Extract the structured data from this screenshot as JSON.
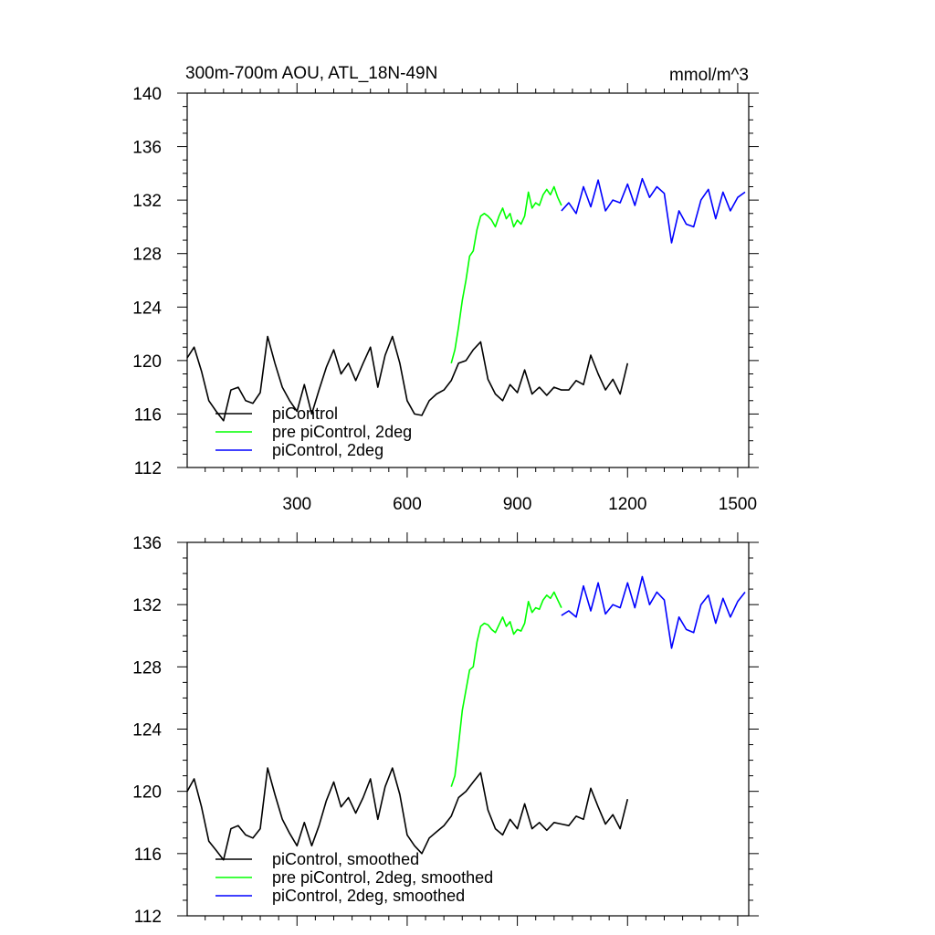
{
  "chart_data": [
    {
      "type": "line",
      "title": "300m-700m AOU, ATL_18N-49N",
      "units": "mmol/m^3",
      "xlim": [
        1,
        1530
      ],
      "ylim": [
        112,
        140
      ],
      "x_ticks": [
        300,
        600,
        900,
        1200,
        1500
      ],
      "x_tick_labels": [
        "300",
        "600",
        "900",
        "1200",
        "1500"
      ],
      "y_ticks": [
        112,
        116,
        120,
        124,
        128,
        132,
        136,
        140
      ],
      "y_tick_labels": [
        "112",
        "116",
        "120",
        "124",
        "128",
        "132",
        "136",
        "140"
      ],
      "legend_position": "bottom-left",
      "series": [
        {
          "name": "piControl",
          "color": "#000000",
          "x": [
            1,
            20,
            40,
            60,
            80,
            100,
            120,
            140,
            160,
            180,
            200,
            220,
            240,
            260,
            280,
            300,
            320,
            340,
            360,
            380,
            400,
            420,
            440,
            460,
            480,
            500,
            520,
            540,
            560,
            580,
            600,
            620,
            640,
            660,
            680,
            700,
            720,
            740,
            760,
            780,
            800,
            820,
            840,
            860,
            880,
            900,
            920,
            940,
            960,
            980,
            1000,
            1020,
            1040,
            1060,
            1080,
            1100,
            1120,
            1140,
            1160,
            1180,
            1200
          ],
          "y": [
            120.2,
            121.0,
            119.2,
            117.0,
            116.2,
            115.5,
            117.8,
            118.0,
            117.0,
            116.8,
            117.6,
            121.8,
            119.8,
            118.0,
            117.0,
            116.2,
            118.2,
            116.0,
            117.8,
            119.5,
            120.8,
            119.0,
            119.8,
            118.5,
            119.8,
            121.0,
            118.0,
            120.4,
            121.8,
            119.8,
            117.0,
            116.0,
            115.9,
            117.0,
            117.5,
            117.8,
            118.5,
            119.8,
            120.0,
            120.8,
            121.4,
            118.6,
            117.5,
            117.0,
            118.2,
            117.6,
            119.3,
            117.5,
            118.0,
            117.4,
            118.0,
            117.8,
            117.8,
            118.5,
            118.2,
            120.4,
            119.0,
            117.8,
            118.6,
            117.5,
            119.8
          ]
        },
        {
          "name": "pre piControl, 2deg",
          "color": "#00ff00",
          "x": [
            720,
            730,
            740,
            750,
            760,
            770,
            780,
            790,
            800,
            810,
            820,
            830,
            840,
            850,
            860,
            870,
            880,
            890,
            900,
            910,
            920,
            930,
            940,
            950,
            960,
            970,
            980,
            990,
            1000,
            1010,
            1020
          ],
          "y": [
            119.8,
            120.8,
            122.5,
            124.5,
            126.0,
            127.8,
            128.2,
            129.8,
            130.8,
            131.0,
            130.8,
            130.5,
            130.0,
            130.8,
            131.4,
            130.6,
            131.0,
            130.0,
            130.5,
            130.2,
            130.8,
            132.6,
            131.4,
            131.8,
            131.6,
            132.4,
            132.8,
            132.4,
            133.0,
            132.2,
            131.6
          ]
        },
        {
          "name": "piControl, 2deg",
          "color": "#0000ff",
          "x": [
            1020,
            1040,
            1060,
            1080,
            1100,
            1120,
            1140,
            1160,
            1180,
            1200,
            1220,
            1240,
            1260,
            1280,
            1300,
            1320,
            1340,
            1360,
            1380,
            1400,
            1420,
            1440,
            1460,
            1480,
            1500,
            1520
          ],
          "y": [
            131.2,
            131.8,
            131.0,
            133.0,
            131.5,
            133.5,
            131.2,
            132.0,
            131.8,
            133.2,
            131.6,
            133.6,
            132.2,
            133.0,
            132.5,
            128.8,
            131.2,
            130.2,
            130.0,
            132.0,
            132.8,
            130.6,
            132.6,
            131.2,
            132.2,
            132.6
          ]
        }
      ]
    },
    {
      "type": "line",
      "title": "",
      "xlim": [
        1,
        1530
      ],
      "ylim": [
        112,
        136
      ],
      "y_ticks": [
        112,
        116,
        120,
        124,
        128,
        132,
        136
      ],
      "y_tick_labels": [
        "112",
        "116",
        "120",
        "124",
        "128",
        "132",
        "136"
      ],
      "legend_position": "bottom-left",
      "series": [
        {
          "name": "piControl, smoothed",
          "color": "#000000",
          "x": [
            1,
            20,
            40,
            60,
            80,
            100,
            120,
            140,
            160,
            180,
            200,
            220,
            240,
            260,
            280,
            300,
            320,
            340,
            360,
            380,
            400,
            420,
            440,
            460,
            480,
            500,
            520,
            540,
            560,
            580,
            600,
            620,
            640,
            660,
            680,
            700,
            720,
            740,
            760,
            780,
            800,
            820,
            840,
            860,
            880,
            900,
            920,
            940,
            960,
            980,
            1000,
            1020,
            1040,
            1060,
            1080,
            1100,
            1120,
            1140,
            1160,
            1180,
            1200
          ],
          "y": [
            120.0,
            120.8,
            119.0,
            116.8,
            116.2,
            115.6,
            117.6,
            117.8,
            117.2,
            117.0,
            117.6,
            121.5,
            119.8,
            118.2,
            117.3,
            116.5,
            118.0,
            116.5,
            117.8,
            119.4,
            120.6,
            119.0,
            119.6,
            118.6,
            119.6,
            120.8,
            118.2,
            120.3,
            121.5,
            119.8,
            117.2,
            116.5,
            116.0,
            117.0,
            117.4,
            117.8,
            118.4,
            119.6,
            120.0,
            120.6,
            121.2,
            118.8,
            117.6,
            117.2,
            118.2,
            117.6,
            119.2,
            117.6,
            118.0,
            117.5,
            118.0,
            117.9,
            117.8,
            118.4,
            118.2,
            120.2,
            119.0,
            117.9,
            118.5,
            117.6,
            119.5
          ]
        },
        {
          "name": "pre piControl, 2deg, smoothed",
          "color": "#00ff00",
          "x": [
            720,
            730,
            740,
            750,
            760,
            770,
            780,
            790,
            800,
            810,
            820,
            830,
            840,
            850,
            860,
            870,
            880,
            890,
            900,
            910,
            920,
            930,
            940,
            950,
            960,
            970,
            980,
            990,
            1000,
            1010,
            1020
          ],
          "y": [
            120.3,
            121.0,
            123.0,
            125.2,
            126.5,
            127.8,
            128.0,
            129.6,
            130.6,
            130.8,
            130.7,
            130.4,
            130.2,
            130.7,
            131.2,
            130.6,
            130.9,
            130.1,
            130.4,
            130.3,
            130.8,
            132.2,
            131.5,
            131.8,
            131.7,
            132.3,
            132.6,
            132.4,
            132.8,
            132.3,
            131.8
          ]
        },
        {
          "name": "piControl, 2deg, smoothed",
          "color": "#0000ff",
          "x": [
            1020,
            1040,
            1060,
            1080,
            1100,
            1120,
            1140,
            1160,
            1180,
            1200,
            1220,
            1240,
            1260,
            1280,
            1300,
            1320,
            1340,
            1360,
            1380,
            1400,
            1420,
            1440,
            1460,
            1480,
            1500,
            1520
          ],
          "y": [
            131.3,
            131.6,
            131.2,
            133.2,
            131.6,
            133.4,
            131.4,
            132.0,
            131.8,
            133.4,
            131.8,
            133.8,
            132.0,
            132.8,
            132.3,
            129.2,
            131.2,
            130.4,
            130.2,
            132.0,
            132.6,
            130.8,
            132.4,
            131.2,
            132.2,
            132.8
          ]
        }
      ]
    }
  ]
}
